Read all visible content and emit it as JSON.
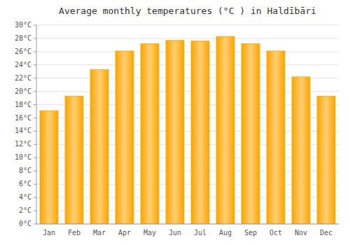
{
  "chart_data": {
    "type": "bar",
    "title": "Average monthly temperatures (°C ) in Haldībāri",
    "categories": [
      "Jan",
      "Feb",
      "Mar",
      "Apr",
      "May",
      "Jun",
      "Jul",
      "Aug",
      "Sep",
      "Oct",
      "Nov",
      "Dec"
    ],
    "values": [
      17.1,
      19.3,
      23.3,
      26.1,
      27.2,
      27.7,
      27.6,
      28.3,
      27.2,
      26.1,
      22.2,
      19.3
    ],
    "color": "#FFA500",
    "ylim": [
      0,
      30
    ],
    "yticks": [
      {
        "value": 0,
        "label": "0°C"
      },
      {
        "value": 2,
        "label": "2°C"
      },
      {
        "value": 4,
        "label": "4°C"
      },
      {
        "value": 6,
        "label": "6°C"
      },
      {
        "value": 8,
        "label": "8°C"
      },
      {
        "value": 10,
        "label": "10°C"
      },
      {
        "value": 12,
        "label": "12°C"
      },
      {
        "value": 14,
        "label": "14°C"
      },
      {
        "value": 16,
        "label": "16°C"
      },
      {
        "value": 18,
        "label": "18°C"
      },
      {
        "value": 20,
        "label": "20°C"
      },
      {
        "value": 22,
        "label": "22°C"
      },
      {
        "value": 24,
        "label": "24°C"
      },
      {
        "value": 26,
        "label": "26°C"
      },
      {
        "value": 28,
        "label": "28°C"
      },
      {
        "value": 30,
        "label": "30°C"
      }
    ],
    "grid": true
  }
}
